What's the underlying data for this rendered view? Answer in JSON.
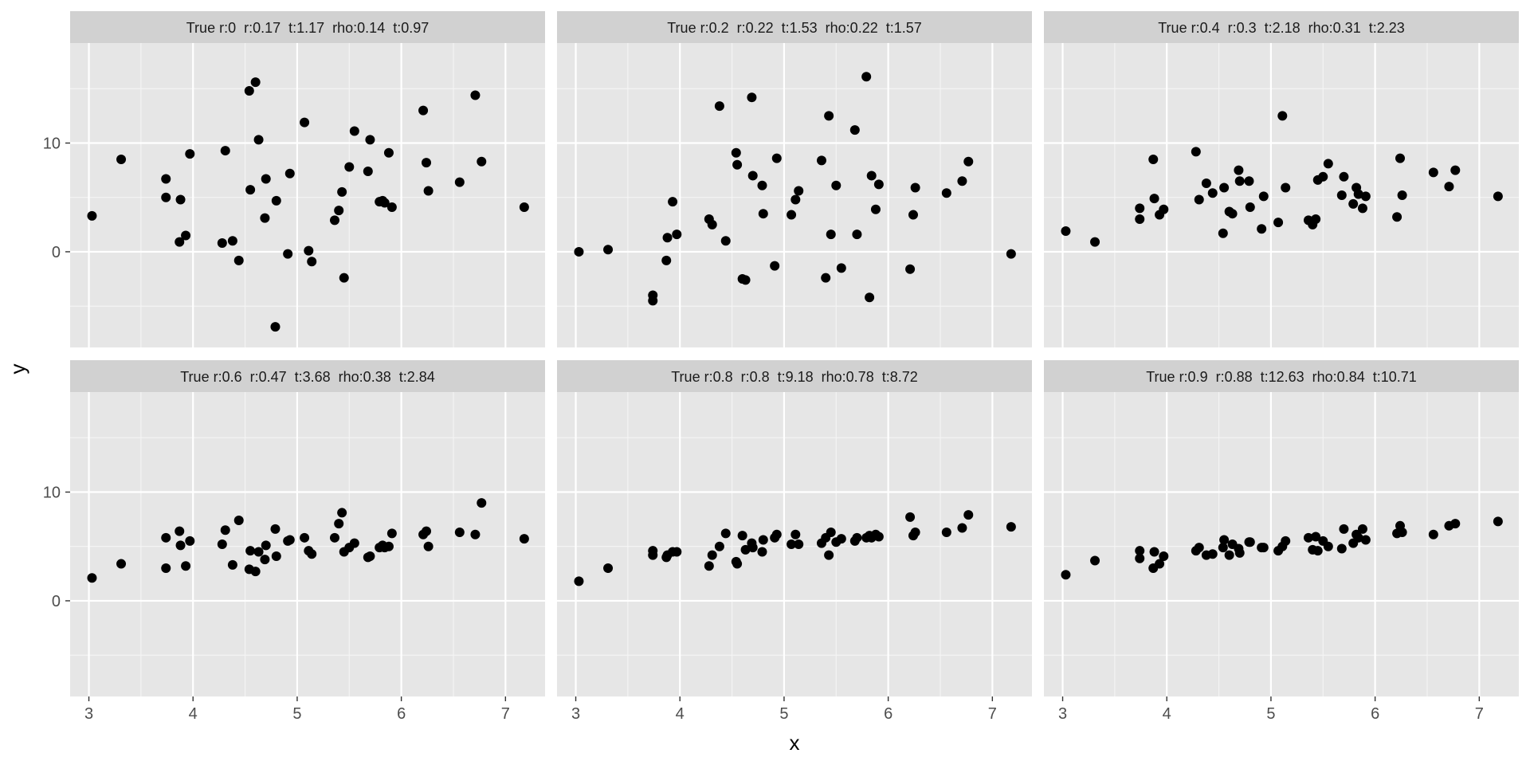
{
  "chart_data": {
    "type": "scatter",
    "layout": "facet-grid-2x3",
    "xlabel": "x",
    "ylabel": "y",
    "xlim": [
      2.82,
      7.38
    ],
    "ylim": [
      -8.8,
      19.2
    ],
    "x_ticks": [
      3,
      4,
      5,
      6,
      7
    ],
    "y_ticks": [
      0,
      10
    ],
    "grid": true,
    "legend": "none",
    "point_color": "#000000",
    "panel_background": "#e6e6e6",
    "strip_background": "#d1d1d1",
    "x": [
      3.03,
      3.31,
      3.74,
      3.74,
      3.87,
      3.88,
      3.93,
      3.97,
      4.28,
      4.31,
      4.38,
      4.44,
      4.54,
      4.55,
      4.6,
      4.63,
      4.69,
      4.7,
      4.79,
      4.8,
      4.91,
      4.93,
      5.07,
      5.11,
      5.14,
      5.36,
      5.4,
      5.43,
      5.45,
      5.5,
      5.55,
      5.68,
      5.7,
      5.79,
      5.82,
      5.84,
      5.88,
      5.91,
      6.21,
      6.24,
      6.26,
      6.56,
      6.71,
      6.77,
      7.18
    ],
    "panels": [
      {
        "label": "True r:0  r:0.17  t:1.17  rho:0.14  t:0.97",
        "y": [
          3.3,
          8.5,
          6.7,
          5.0,
          0.9,
          4.8,
          1.5,
          9.0,
          0.8,
          9.3,
          1.0,
          -0.8,
          14.8,
          5.7,
          15.6,
          10.3,
          3.1,
          6.7,
          -6.9,
          4.7,
          -0.2,
          7.2,
          11.9,
          0.1,
          -0.9,
          2.9,
          3.8,
          5.5,
          -2.4,
          7.8,
          11.1,
          7.4,
          10.3,
          4.6,
          4.7,
          4.5,
          9.1,
          4.1,
          13.0,
          8.2,
          5.6,
          6.4,
          14.4,
          8.3,
          4.1
        ]
      },
      {
        "label": "True r:0.2  r:0.22  t:1.53  rho:0.22  t:1.57",
        "y": [
          0.0,
          0.2,
          -4.5,
          -4.0,
          -0.8,
          1.3,
          4.6,
          1.6,
          3.0,
          2.5,
          13.4,
          1.0,
          9.1,
          8.0,
          -2.5,
          -2.6,
          14.2,
          7.0,
          6.1,
          3.5,
          -1.3,
          8.6,
          3.4,
          4.8,
          5.6,
          8.4,
          -2.4,
          12.5,
          1.6,
          6.1,
          -1.5,
          11.2,
          1.6,
          16.1,
          -4.2,
          7.0,
          3.9,
          6.2,
          -1.6,
          3.4,
          5.9,
          5.4,
          6.5,
          8.3,
          -0.2
        ]
      },
      {
        "label": "True r:0.4  r:0.3  t:2.18  rho:0.31  t:2.23",
        "y": [
          1.9,
          0.9,
          3.0,
          4.0,
          8.5,
          4.9,
          3.4,
          3.9,
          9.2,
          4.8,
          6.3,
          5.4,
          1.7,
          5.9,
          3.7,
          3.5,
          7.5,
          6.5,
          6.5,
          4.1,
          2.1,
          5.1,
          2.7,
          12.5,
          5.9,
          2.9,
          2.5,
          3.0,
          6.6,
          6.9,
          8.1,
          5.2,
          6.9,
          4.4,
          5.9,
          5.3,
          4.0,
          5.1,
          3.2,
          8.6,
          5.2,
          7.3,
          6.0,
          7.5,
          5.1
        ]
      },
      {
        "label": "True r:0.6  r:0.47  t:3.68  rho:0.38  t:2.84",
        "y": [
          2.1,
          3.4,
          5.8,
          3.0,
          6.4,
          5.1,
          3.2,
          5.5,
          5.2,
          6.5,
          3.3,
          7.4,
          2.9,
          4.6,
          2.7,
          4.5,
          3.8,
          5.1,
          6.6,
          4.1,
          5.5,
          5.6,
          5.8,
          4.6,
          4.3,
          5.8,
          7.1,
          8.1,
          4.5,
          4.9,
          5.3,
          4.0,
          4.1,
          4.9,
          5.1,
          4.9,
          5.0,
          6.2,
          6.1,
          6.4,
          5.0,
          6.3,
          6.1,
          9.0,
          5.7
        ]
      },
      {
        "label": "True r:0.8  r:0.8  t:9.18  rho:0.78  t:8.72",
        "y": [
          1.8,
          3.0,
          4.2,
          4.6,
          4.0,
          4.2,
          4.5,
          4.5,
          3.2,
          4.2,
          5.0,
          6.2,
          3.6,
          3.4,
          6.0,
          4.7,
          5.3,
          4.9,
          4.5,
          5.6,
          5.8,
          6.1,
          5.2,
          6.1,
          5.2,
          5.3,
          5.8,
          4.2,
          6.3,
          5.4,
          5.7,
          5.5,
          5.8,
          5.8,
          6.0,
          5.8,
          6.1,
          5.9,
          7.7,
          6.0,
          6.3,
          6.3,
          6.7,
          7.9,
          6.8
        ]
      },
      {
        "label": "True r:0.9  r:0.88  t:12.63  rho:0.84  t:10.71",
        "y": [
          2.4,
          3.7,
          3.9,
          4.6,
          3.0,
          4.5,
          3.4,
          4.1,
          4.6,
          4.9,
          4.2,
          4.3,
          4.9,
          5.6,
          4.2,
          5.2,
          4.8,
          4.4,
          5.4,
          5.4,
          4.9,
          4.9,
          4.6,
          5.0,
          5.5,
          5.8,
          4.7,
          5.9,
          4.6,
          5.5,
          5.0,
          4.8,
          6.6,
          5.3,
          6.1,
          5.8,
          6.6,
          5.6,
          6.2,
          6.9,
          6.3,
          6.1,
          6.9,
          7.1,
          7.3
        ]
      }
    ]
  }
}
